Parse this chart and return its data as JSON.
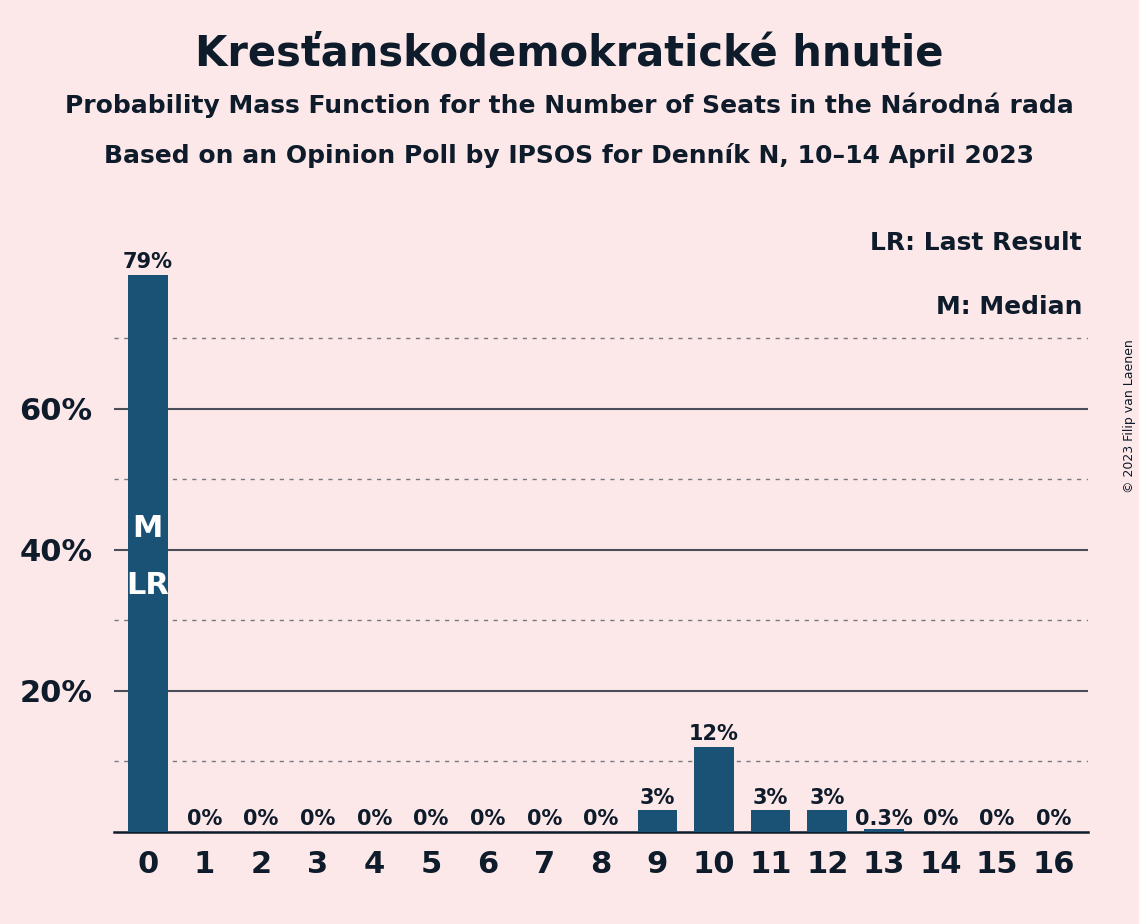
{
  "title": "Kresťanskodemokratické hnutie",
  "subtitle1": "Probability Mass Function for the Number of Seats in the Národná rada",
  "subtitle2": "Based on an Opinion Poll by IPSOS for Denník N, 10–14 April 2023",
  "copyright": "© 2023 Filip van Laenen",
  "categories": [
    0,
    1,
    2,
    3,
    4,
    5,
    6,
    7,
    8,
    9,
    10,
    11,
    12,
    13,
    14,
    15,
    16
  ],
  "values": [
    0.79,
    0.0,
    0.0,
    0.0,
    0.0,
    0.0,
    0.0,
    0.0,
    0.0,
    0.03,
    0.12,
    0.03,
    0.03,
    0.003,
    0.0,
    0.0,
    0.0
  ],
  "bar_labels": [
    "79%",
    "0%",
    "0%",
    "0%",
    "0%",
    "0%",
    "0%",
    "0%",
    "0%",
    "3%",
    "12%",
    "3%",
    "3%",
    "0.3%",
    "0%",
    "0%",
    "0%"
  ],
  "bar_color": "#1a5276",
  "background_color": "#fce8e8",
  "dotted_lines": [
    0.1,
    0.3,
    0.5,
    0.7
  ],
  "solid_lines": [
    0.2,
    0.4,
    0.6
  ],
  "ylim": [
    0,
    0.865
  ],
  "legend_lr": "LR: Last Result",
  "legend_m": "M: Median",
  "text_color": "#0d1b2a",
  "title_fontsize": 30,
  "subtitle_fontsize": 18,
  "axis_tick_fontsize": 22,
  "bar_label_fontsize": 15,
  "legend_fontsize": 18,
  "copyright_fontsize": 9,
  "ml_fontsize": 22
}
